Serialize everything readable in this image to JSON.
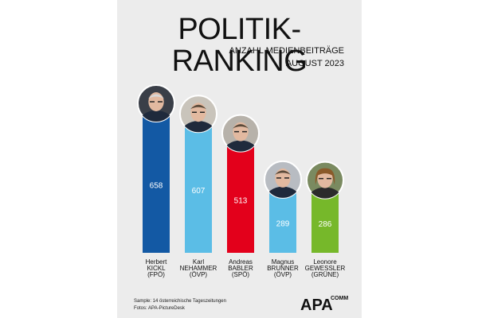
{
  "header": {
    "title": "POLITIK-RANKING",
    "subtitle": "ANZAHL MEDIENBEITRÄGE",
    "period": "AUGUST 2023"
  },
  "chart_data": {
    "type": "bar",
    "categories": [
      "Herbert KICKL (FPÖ)",
      "Karl NEHAMMER (ÖVP)",
      "Andreas BABLER (SPÖ)",
      "Magnus BRUNNER (ÖVP)",
      "Leonore GEWESSLER (GRÜNE)"
    ],
    "values": [
      658,
      607,
      513,
      289,
      286
    ],
    "value_labels": [
      "658",
      "607",
      "513",
      "289",
      "286"
    ],
    "bar_colors": [
      "#1359a4",
      "#5bbde6",
      "#e3001b",
      "#5bbde6",
      "#76b82a"
    ],
    "title": "POLITIK-RANKING",
    "ylim": [
      0,
      658
    ],
    "grid": false,
    "legend": "none"
  },
  "people": [
    {
      "first": "Herbert",
      "last": "KICKL",
      "party": "(FPÖ)"
    },
    {
      "first": "Karl",
      "last": "NEHAMMER",
      "party": "(ÖVP)"
    },
    {
      "first": "Andreas",
      "last": "BABLER",
      "party": "(SPÖ)"
    },
    {
      "first": "Magnus",
      "last": "BRUNNER",
      "party": "(ÖVP)"
    },
    {
      "first": "Leonore",
      "last": "GEWESSLER",
      "party": "(GRÜNE)"
    }
  ],
  "footer": {
    "sample": "Sample: 14 österreichische Tageszeitungen",
    "photos": "Fotos: APA-PictureDesk"
  },
  "logo": {
    "main": "APA",
    "sub": "COMM"
  }
}
